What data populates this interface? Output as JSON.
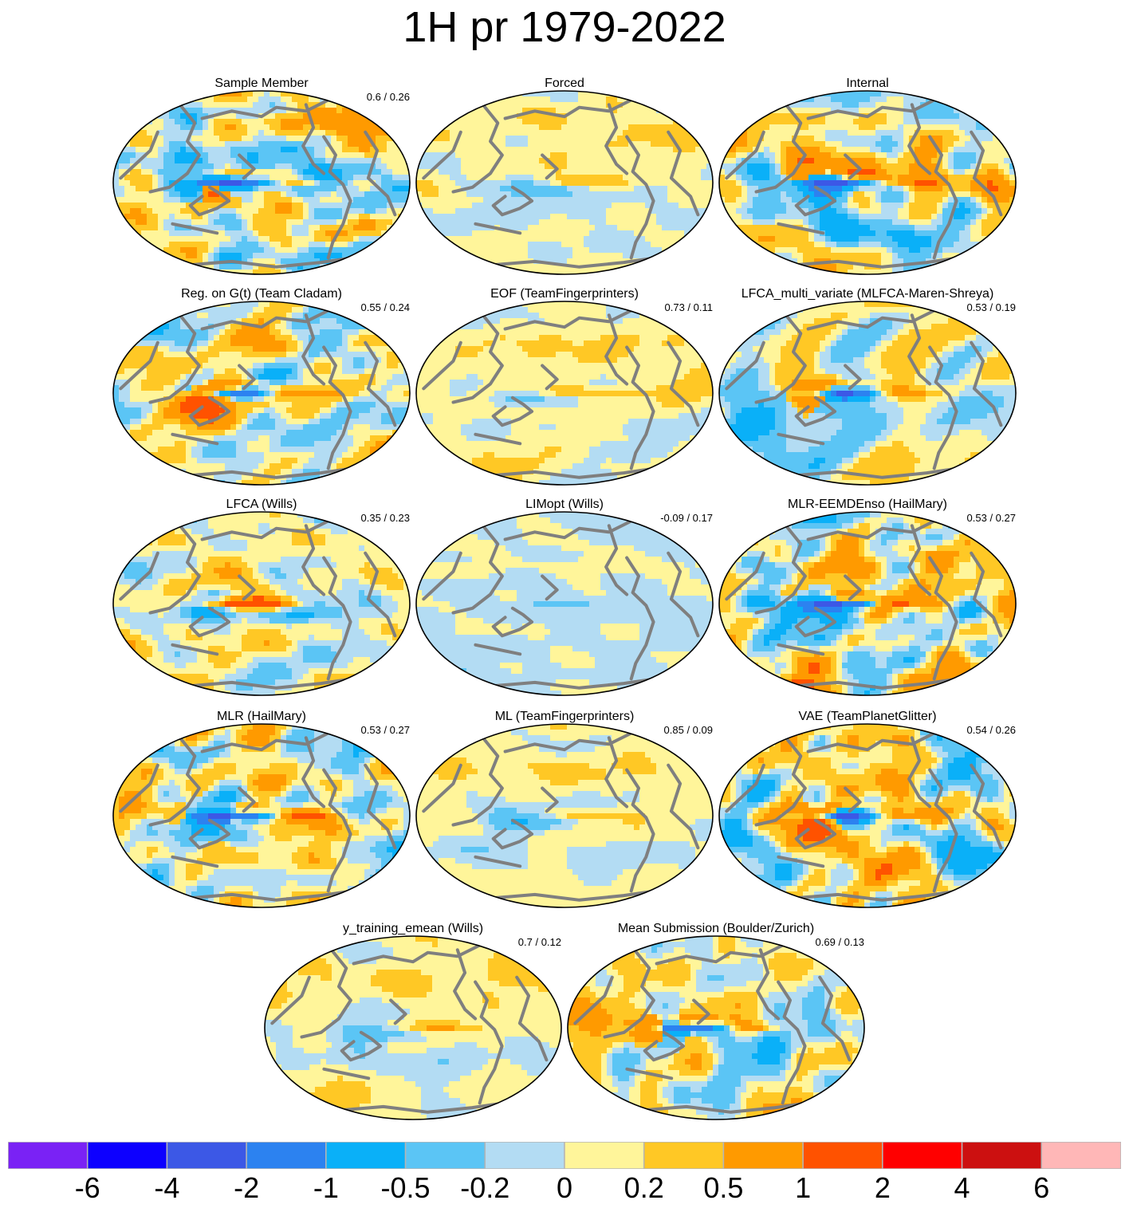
{
  "title": "1H pr 1979-2022",
  "palette": {
    "coast": "#7f7f7f",
    "border": "#000000",
    "colors": [
      "#7a22f5",
      "#0d00ff",
      "#3c58e6",
      "#2c82f0",
      "#0ab0f8",
      "#5bc5f5",
      "#b3dcf3",
      "#fff59a",
      "#ffc825",
      "#ff9a00",
      "#ff5200",
      "#ff0000",
      "#cc1010",
      "#ffb7b7"
    ]
  },
  "colorbar": {
    "labels": [
      "-6",
      "-4",
      "-2",
      "-1",
      "-0.5",
      "-0.2",
      "0",
      "0.2",
      "0.5",
      "1",
      "2",
      "4",
      "6"
    ]
  },
  "panels": [
    {
      "id": "sample-member",
      "title": "Sample Member",
      "score": "0.6 / 0.26",
      "pattern": "internal",
      "amp": 1.0,
      "seed": 11
    },
    {
      "id": "forced",
      "title": "Forced",
      "score": "",
      "pattern": "forced",
      "amp": 0.7,
      "seed": 3
    },
    {
      "id": "internal",
      "title": "Internal",
      "score": "",
      "pattern": "internal",
      "amp": 0.95,
      "seed": 17
    },
    {
      "id": "reg-on-gt",
      "title": "Reg. on G(t) (Team Cladam)",
      "score": "0.55 / 0.24",
      "pattern": "internal",
      "amp": 1.0,
      "seed": 23
    },
    {
      "id": "eof",
      "title": "EOF (TeamFingerprinters)",
      "score": "0.73 / 0.11",
      "pattern": "forced",
      "amp": 0.75,
      "seed": 5
    },
    {
      "id": "lfca-multi",
      "title": "LFCA_multi_variate (MLFCA-Maren-Shreya)",
      "score": "0.53 / 0.19",
      "pattern": "internal",
      "amp": 0.9,
      "seed": 31
    },
    {
      "id": "lfca-wills",
      "title": "LFCA (Wills)",
      "score": "0.35 / 0.23",
      "pattern": "lfca",
      "amp": 1.0,
      "seed": 7
    },
    {
      "id": "limopt",
      "title": "LIMopt (Wills)",
      "score": "-0.09 / 0.17",
      "pattern": "limopt",
      "amp": 0.6,
      "seed": 9
    },
    {
      "id": "mlr-eemd",
      "title": "MLR-EEMDEnso (HailMary)",
      "score": "0.53 / 0.27",
      "pattern": "internal",
      "amp": 1.1,
      "seed": 41
    },
    {
      "id": "mlr",
      "title": "MLR (HailMary)",
      "score": "0.53 / 0.27",
      "pattern": "internal",
      "amp": 1.1,
      "seed": 43
    },
    {
      "id": "ml",
      "title": "ML (TeamFingerprinters)",
      "score": "0.85 / 0.09",
      "pattern": "forced",
      "amp": 0.65,
      "seed": 13
    },
    {
      "id": "vae",
      "title": "VAE (TeamPlanetGlitter)",
      "score": "0.54 / 0.26",
      "pattern": "internal",
      "amp": 1.05,
      "seed": 47
    },
    {
      "id": "y-training",
      "title": "y_training_emean (Wills)",
      "score": "0.7 / 0.12",
      "pattern": "forced",
      "amp": 0.8,
      "seed": 19
    },
    {
      "id": "mean-submission",
      "title": "Mean Submission (Boulder/Zurich)",
      "score": "0.69 / 0.13",
      "pattern": "internal",
      "amp": 0.85,
      "seed": 29
    }
  ]
}
